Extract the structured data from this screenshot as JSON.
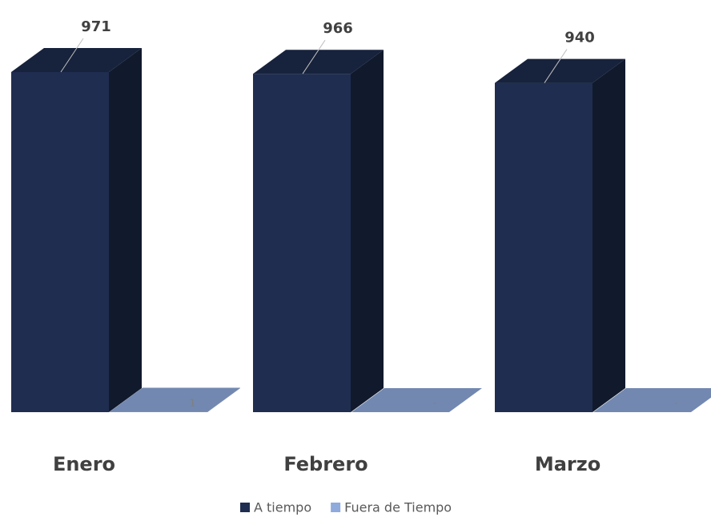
{
  "chart_data": {
    "type": "bar3d",
    "categories": [
      "Enero",
      "Febrero",
      "Marzo"
    ],
    "series": [
      {
        "name": "A tiempo",
        "color": "#1f2d50",
        "values": [
          971,
          966,
          940
        ]
      },
      {
        "name": "Fuera de Tiempo",
        "color": "#8faadc",
        "values": [
          1,
          0,
          0
        ],
        "value_labels": [
          "1",
          "-",
          "-"
        ]
      }
    ],
    "legend": "bottom"
  }
}
